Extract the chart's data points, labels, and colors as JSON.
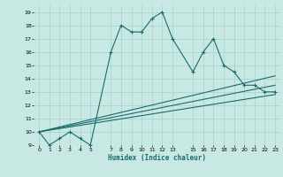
{
  "xlabel": "Humidex (Indice chaleur)",
  "bg_color": "#c8e8e4",
  "grid_color": "#a8d0cc",
  "line_color": "#1a6b6b",
  "xlim": [
    -0.5,
    23.5
  ],
  "ylim": [
    9,
    19.5
  ],
  "xtick_positions": [
    0,
    1,
    2,
    3,
    4,
    5,
    7,
    8,
    9,
    10,
    11,
    12,
    13,
    15,
    16,
    17,
    18,
    19,
    20,
    21,
    22,
    23
  ],
  "xtick_labels": [
    "0",
    "1",
    "2",
    "3",
    "4",
    "5",
    "7",
    "8",
    "9",
    "10",
    "11",
    "12",
    "13",
    "15",
    "16",
    "17",
    "18",
    "19",
    "20",
    "21",
    "22",
    "23"
  ],
  "yticks": [
    9,
    10,
    11,
    12,
    13,
    14,
    15,
    16,
    17,
    18,
    19
  ],
  "series": [
    {
      "x": [
        0,
        1,
        2,
        3,
        4,
        5,
        7,
        8,
        9,
        10,
        11,
        12,
        13,
        15,
        16,
        17,
        18,
        19,
        20,
        21,
        22,
        23
      ],
      "y": [
        10,
        9,
        9.5,
        10,
        9.5,
        9,
        16,
        18,
        17.5,
        17.5,
        18.5,
        19,
        17,
        14.5,
        16,
        17,
        15,
        14.5,
        13.5,
        13.5,
        13,
        13
      ],
      "marker": true
    },
    {
      "x": [
        0,
        23
      ],
      "y": [
        10,
        14.2
      ],
      "marker": false
    },
    {
      "x": [
        0,
        23
      ],
      "y": [
        10,
        13.5
      ],
      "marker": false
    },
    {
      "x": [
        0,
        23
      ],
      "y": [
        10,
        12.8
      ],
      "marker": false
    }
  ]
}
